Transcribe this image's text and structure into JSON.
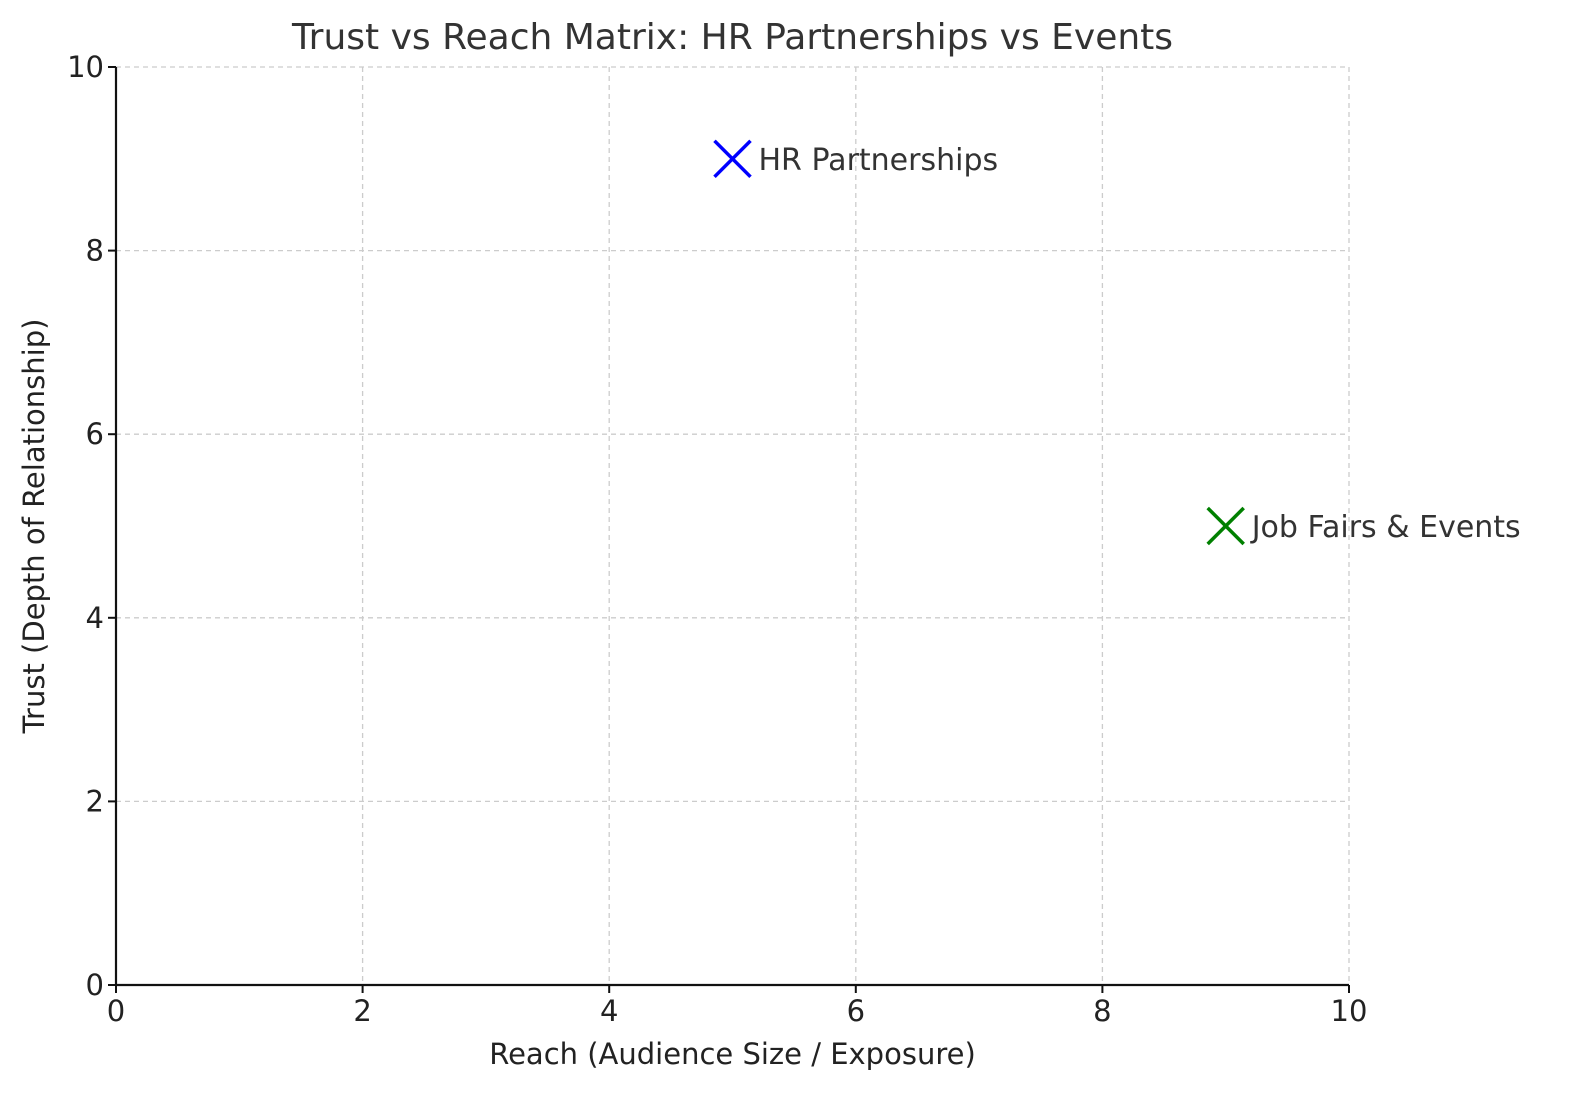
{
  "chart_data": {
    "type": "scatter",
    "title": "Trust vs Reach Matrix: HR Partnerships vs Events",
    "xlabel": "Reach (Audience Size / Exposure)",
    "ylabel": "Trust (Depth of Relationship)",
    "xlim": [
      0,
      10
    ],
    "ylim": [
      0,
      10
    ],
    "xticks": [
      0,
      2,
      4,
      6,
      8,
      10
    ],
    "yticks": [
      0,
      2,
      4,
      6,
      8,
      10
    ],
    "grid": true,
    "marker": "x",
    "points": [
      {
        "label": "HR Partnerships",
        "x": 5,
        "y": 9,
        "color": "#0000ff"
      },
      {
        "label": "Job Fairs & Events",
        "x": 9,
        "y": 5,
        "color": "#008000"
      }
    ]
  }
}
